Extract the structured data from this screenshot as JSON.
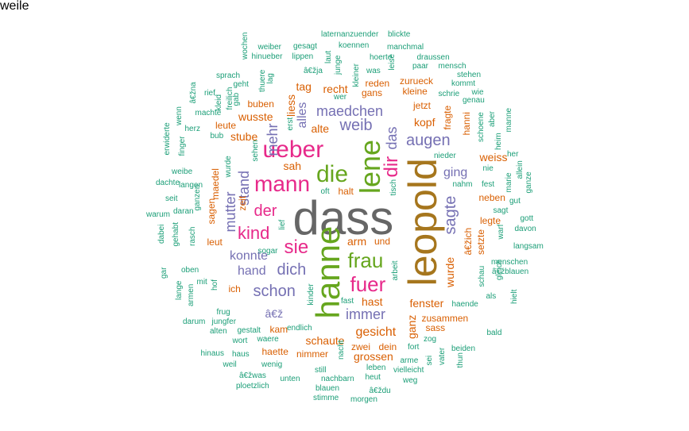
{
  "palette": [
    "#1b9e77",
    "#d95f02",
    "#7570b3",
    "#e7298a",
    "#66a61e",
    "#a6761d",
    "#666666"
  ],
  "words": [
    {
      "text": "dass",
      "c": 6
    },
    {
      "text": "leopold",
      "c": 5
    },
    {
      "text": "hanne",
      "c": 4
    },
    {
      "text": "lene",
      "c": 4
    },
    {
      "text": "die",
      "c": 4
    },
    {
      "text": "ueber",
      "c": 3
    },
    {
      "text": "mann",
      "c": 3
    },
    {
      "text": "fuer",
      "c": 3
    },
    {
      "text": "frau",
      "c": 4
    },
    {
      "text": "sie",
      "c": 3
    },
    {
      "text": "dir",
      "c": 3
    },
    {
      "text": "kind",
      "c": 3
    },
    {
      "text": "der",
      "c": 3
    },
    {
      "text": "augen",
      "c": 2
    },
    {
      "text": "sagte",
      "c": 2
    },
    {
      "text": "weib",
      "c": 2
    },
    {
      "text": "das",
      "c": 2
    },
    {
      "text": "maedchen",
      "c": 2
    },
    {
      "text": "schon",
      "c": 2
    },
    {
      "text": "dich",
      "c": 2
    },
    {
      "text": "immer",
      "c": 2
    },
    {
      "text": "hand",
      "c": 2
    },
    {
      "text": "konnte",
      "c": 2
    },
    {
      "text": "mutter",
      "c": 2
    },
    {
      "text": "stand",
      "c": 2
    },
    {
      "text": "mehr",
      "c": 2
    },
    {
      "text": "alles",
      "c": 2
    },
    {
      "text": "ging",
      "c": 2
    },
    {
      "text": "gesicht",
      "c": 1
    },
    {
      "text": "schaute",
      "c": 1
    },
    {
      "text": "fenster",
      "c": 1
    },
    {
      "text": "wurde",
      "c": 1
    },
    {
      "text": "ganz",
      "c": 1
    },
    {
      "text": "arm",
      "c": 1
    },
    {
      "text": "und",
      "c": 1
    },
    {
      "text": "sah",
      "c": 1
    },
    {
      "text": "kopf",
      "c": 1
    },
    {
      "text": "recht",
      "c": 1
    },
    {
      "text": "weiss",
      "c": 1
    },
    {
      "text": "â€ž",
      "c": 2
    },
    {
      "text": "liess",
      "c": 1
    },
    {
      "text": "hast",
      "c": 1
    },
    {
      "text": "grossen",
      "c": 1
    },
    {
      "text": "wusste",
      "c": 1
    },
    {
      "text": "alte",
      "c": 1
    },
    {
      "text": "stube",
      "c": 1
    },
    {
      "text": "buben",
      "c": 1
    },
    {
      "text": "jetzt",
      "c": 1
    },
    {
      "text": "fragte",
      "c": 1
    },
    {
      "text": "tag",
      "c": 1
    },
    {
      "text": "gans",
      "c": 1
    },
    {
      "text": "reden",
      "c": 1
    },
    {
      "text": "kleine",
      "c": 1
    },
    {
      "text": "neben",
      "c": 1
    },
    {
      "text": "sass",
      "c": 1
    },
    {
      "text": "kam",
      "c": 1
    },
    {
      "text": "zwei",
      "c": 1
    },
    {
      "text": "dein",
      "c": 1
    },
    {
      "text": "nimmer",
      "c": 1
    },
    {
      "text": "hanni",
      "c": 1
    },
    {
      "text": "halt",
      "c": 1
    },
    {
      "text": "zeit",
      "c": 1
    },
    {
      "text": "sagen",
      "c": 1
    },
    {
      "text": "leut",
      "c": 1
    },
    {
      "text": "ich",
      "c": 1
    },
    {
      "text": "maedel",
      "c": 1
    },
    {
      "text": "setzte",
      "c": 1
    },
    {
      "text": "legte",
      "c": 1
    },
    {
      "text": "â€žich",
      "c": 1
    },
    {
      "text": "zusammen",
      "c": 1
    },
    {
      "text": "zurueck",
      "c": 1
    },
    {
      "text": "haette",
      "c": 1
    },
    {
      "text": "leute",
      "c": 1
    },
    {
      "text": "laternanzuender",
      "c": 0
    },
    {
      "text": "blickte",
      "c": 0
    },
    {
      "text": "weiber",
      "c": 0
    },
    {
      "text": "gesagt",
      "c": 0
    },
    {
      "text": "koennen",
      "c": 0
    },
    {
      "text": "manchmal",
      "c": 0
    },
    {
      "text": "hinueber",
      "c": 0
    },
    {
      "text": "lippen",
      "c": 0
    },
    {
      "text": "laut",
      "c": 0
    },
    {
      "text": "hoerte",
      "c": 0
    },
    {
      "text": "draussen",
      "c": 0
    },
    {
      "text": "wochen",
      "c": 0
    },
    {
      "text": "junge",
      "c": 0
    },
    {
      "text": "leise",
      "c": 0
    },
    {
      "text": "paar",
      "c": 0
    },
    {
      "text": "mensch",
      "c": 0
    },
    {
      "text": "stehen",
      "c": 0
    },
    {
      "text": "sprach",
      "c": 0
    },
    {
      "text": "thuere",
      "c": 0
    },
    {
      "text": "â€žja",
      "c": 0
    },
    {
      "text": "kleiner",
      "c": 0
    },
    {
      "text": "was",
      "c": 0
    },
    {
      "text": "kommt",
      "c": 0
    },
    {
      "text": "â€žna",
      "c": 0
    },
    {
      "text": "geht",
      "c": 0
    },
    {
      "text": "lag",
      "c": 0
    },
    {
      "text": "wer",
      "c": 0
    },
    {
      "text": "schrie",
      "c": 0
    },
    {
      "text": "wie",
      "c": 0
    },
    {
      "text": "genau",
      "c": 0
    },
    {
      "text": "rief",
      "c": 0
    },
    {
      "text": "freilich",
      "c": 0
    },
    {
      "text": "gab",
      "c": 0
    },
    {
      "text": "wenn",
      "c": 0
    },
    {
      "text": "kleid",
      "c": 0
    },
    {
      "text": "machte",
      "c": 0
    },
    {
      "text": "schoene",
      "c": 0
    },
    {
      "text": "aber",
      "c": 0
    },
    {
      "text": "manne",
      "c": 0
    },
    {
      "text": "erwiderte",
      "c": 0
    },
    {
      "text": "herz",
      "c": 0
    },
    {
      "text": "bub",
      "c": 0
    },
    {
      "text": "erst",
      "c": 0
    },
    {
      "text": "finger",
      "c": 0
    },
    {
      "text": "heim",
      "c": 0
    },
    {
      "text": "sehen",
      "c": 0
    },
    {
      "text": "her",
      "c": 0
    },
    {
      "text": "weibe",
      "c": 0
    },
    {
      "text": "wurde",
      "c": 0
    },
    {
      "text": "nieder",
      "c": 0
    },
    {
      "text": "nie",
      "c": 0
    },
    {
      "text": "allein",
      "c": 0
    },
    {
      "text": "marie",
      "c": 0
    },
    {
      "text": "dachte",
      "c": 0
    },
    {
      "text": "langen",
      "c": 0
    },
    {
      "text": "nahm",
      "c": 0
    },
    {
      "text": "fest",
      "c": 0
    },
    {
      "text": "ganze",
      "c": 0
    },
    {
      "text": "tisch",
      "c": 0
    },
    {
      "text": "oft",
      "c": 0
    },
    {
      "text": "seit",
      "c": 0
    },
    {
      "text": "ganzen",
      "c": 0
    },
    {
      "text": "gut",
      "c": 0
    },
    {
      "text": "daran",
      "c": 0
    },
    {
      "text": "sagt",
      "c": 0
    },
    {
      "text": "warum",
      "c": 0
    },
    {
      "text": "dabei",
      "c": 0
    },
    {
      "text": "gehabt",
      "c": 0
    },
    {
      "text": "lief",
      "c": 0
    },
    {
      "text": "gott",
      "c": 0
    },
    {
      "text": "warf",
      "c": 0
    },
    {
      "text": "davon",
      "c": 0
    },
    {
      "text": "rasch",
      "c": 0
    },
    {
      "text": "langsam",
      "c": 0
    },
    {
      "text": "sogar",
      "c": 0
    },
    {
      "text": "gar",
      "c": 0
    },
    {
      "text": "menschen",
      "c": 0
    },
    {
      "text": "oben",
      "c": 0
    },
    {
      "text": "arbeit",
      "c": 0
    },
    {
      "text": "schau",
      "c": 0
    },
    {
      "text": "gleich",
      "c": 0
    },
    {
      "text": "â€žblauen",
      "c": 0
    },
    {
      "text": "mit",
      "c": 0
    },
    {
      "text": "hof",
      "c": 0
    },
    {
      "text": "lange",
      "c": 0
    },
    {
      "text": "armen",
      "c": 0
    },
    {
      "text": "kinder",
      "c": 0
    },
    {
      "text": "fast",
      "c": 0
    },
    {
      "text": "als",
      "c": 0
    },
    {
      "text": "hielt",
      "c": 0
    },
    {
      "text": "haende",
      "c": 0
    },
    {
      "text": "frug",
      "c": 0
    },
    {
      "text": "darum",
      "c": 0
    },
    {
      "text": "jungfer",
      "c": 0
    },
    {
      "text": "bald",
      "c": 0
    },
    {
      "text": "gestalt",
      "c": 0
    },
    {
      "text": "alten",
      "c": 0
    },
    {
      "text": "endlich",
      "c": 0
    },
    {
      "text": "fort",
      "c": 0
    },
    {
      "text": "zog",
      "c": 0
    },
    {
      "text": "wort",
      "c": 0
    },
    {
      "text": "waere",
      "c": 0
    },
    {
      "text": "beiden",
      "c": 0
    },
    {
      "text": "hinaus",
      "c": 0
    },
    {
      "text": "haus",
      "c": 0
    },
    {
      "text": "nacht",
      "c": 0
    },
    {
      "text": "sei",
      "c": 0
    },
    {
      "text": "vater",
      "c": 0
    },
    {
      "text": "arme",
      "c": 0
    },
    {
      "text": "thun",
      "c": 0
    },
    {
      "text": "weil",
      "c": 0
    },
    {
      "text": "wenig",
      "c": 0
    },
    {
      "text": "leben",
      "c": 0
    },
    {
      "text": "vielleicht",
      "c": 0
    },
    {
      "text": "still",
      "c": 0
    },
    {
      "text": "â€žwas",
      "c": 0
    },
    {
      "text": "unten",
      "c": 0
    },
    {
      "text": "nachbarn",
      "c": 0
    },
    {
      "text": "heut",
      "c": 0
    },
    {
      "text": "weg",
      "c": 0
    },
    {
      "text": "ploetzlich",
      "c": 0
    },
    {
      "text": "blauen",
      "c": 0
    },
    {
      "text": "â€ždu",
      "c": 0
    },
    {
      "text": "stimme",
      "c": 0
    },
    {
      "text": "morgen",
      "c": 0
    },
    {
      "text": "weile",
      "c": 0
    }
  ]
}
